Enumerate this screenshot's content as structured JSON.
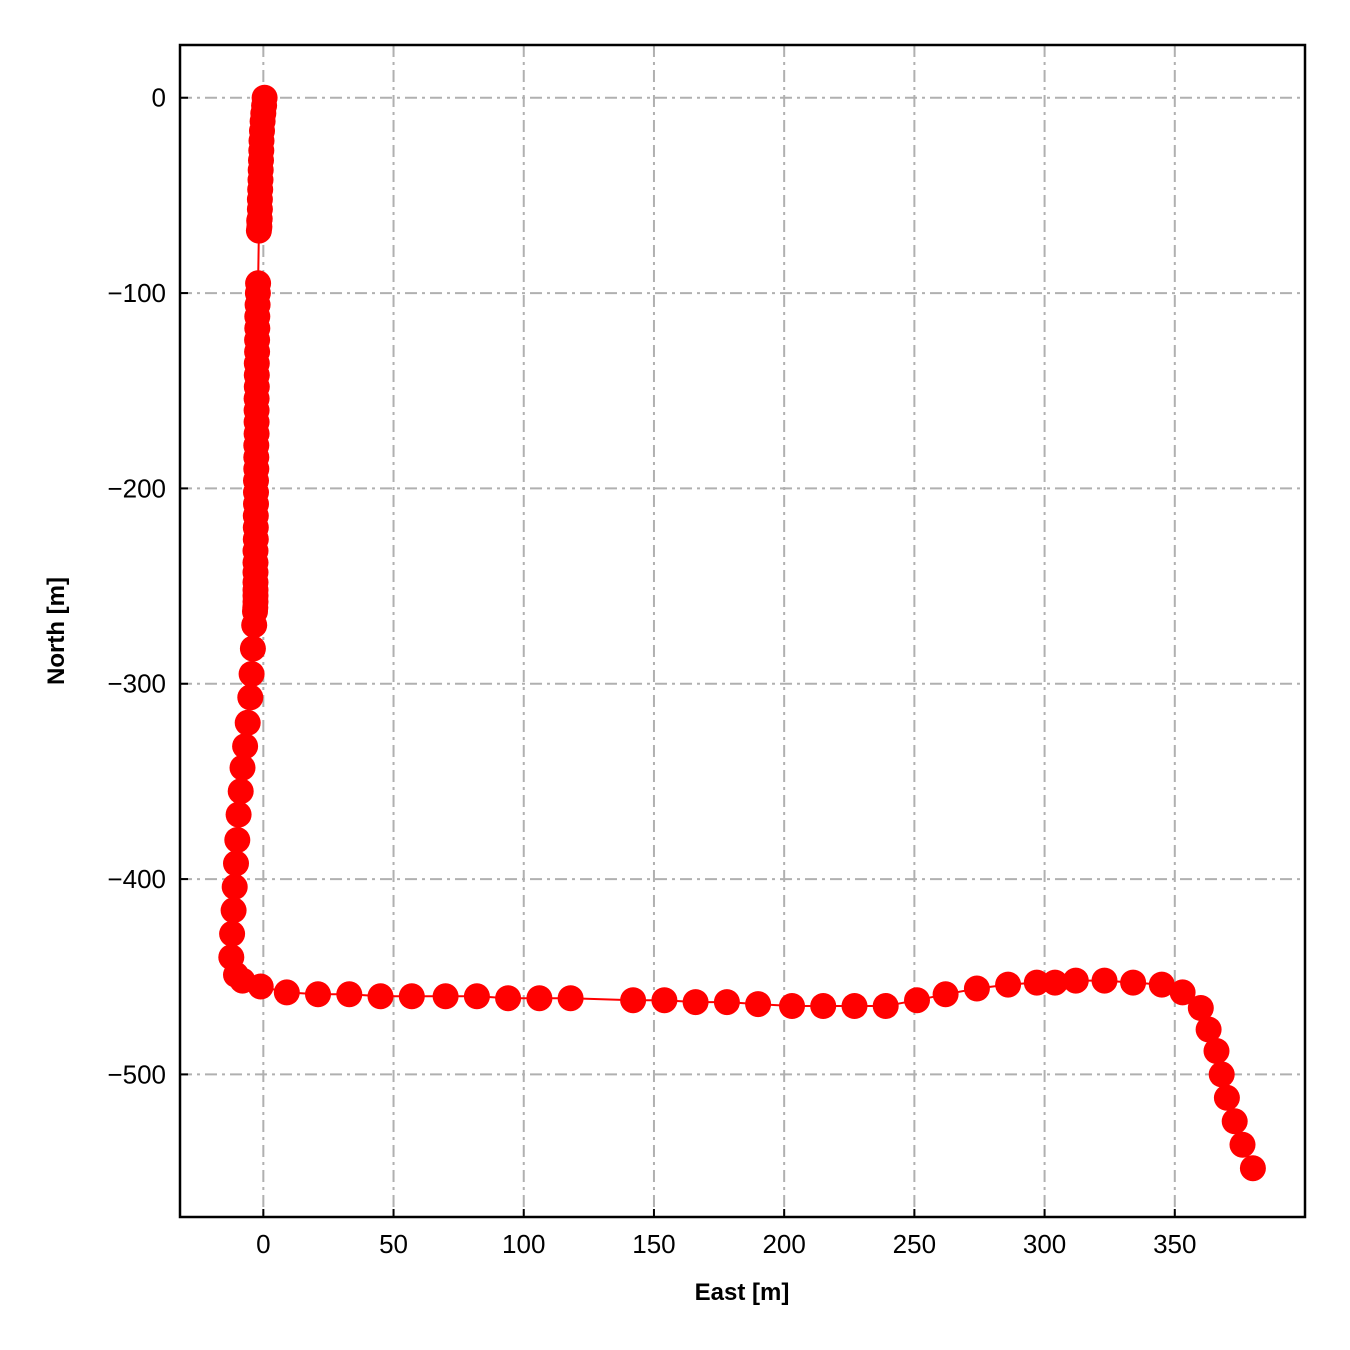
{
  "chart_data": {
    "type": "line",
    "title": "",
    "xlabel": "East [m]",
    "ylabel": "North [m]",
    "xlim": [
      -32,
      400
    ],
    "ylim": [
      -573,
      27
    ],
    "xticks": [
      0,
      50,
      100,
      150,
      200,
      250,
      300,
      350
    ],
    "yticks": [
      0,
      -100,
      -200,
      -300,
      -400,
      -500
    ],
    "grid": true,
    "legend": "none",
    "colors": {
      "series": "#ff0000",
      "grid": "#b0b0b0",
      "frame": "#000000"
    },
    "series": [
      {
        "marker": "circle",
        "x": [
          0.5,
          0.3,
          0,
          -0.3,
          -0.5,
          -0.7,
          -0.8,
          -0.9,
          -1,
          -1.1,
          -1.2,
          -1.3,
          -1.3,
          -1.4,
          -1.5,
          -1.6,
          -1.7,
          -2,
          -2.1,
          -2.2,
          -2.3,
          -2.3,
          -2.4,
          -2.4,
          -2.5,
          -2.5,
          -2.5,
          -2.6,
          -2.6,
          -2.6,
          -2.6,
          -2.7,
          -2.7,
          -2.7,
          -2.8,
          -2.8,
          -2.8,
          -2.9,
          -2.9,
          -2.9,
          -3,
          -3,
          -3,
          -3,
          -3,
          -3,
          -3,
          -3.1,
          -3.2,
          -3.5,
          -4,
          -4.5,
          -5,
          -6,
          -7,
          -8,
          -8.7,
          -9.5,
          -10,
          -10.5,
          -11,
          -11.4,
          -12,
          -12.3,
          -10.5,
          -8,
          -1,
          9,
          21,
          33,
          45,
          57,
          70,
          82,
          94,
          106,
          118,
          142,
          154,
          166,
          178,
          190,
          203,
          215,
          227,
          239,
          251,
          262,
          274,
          286,
          297,
          304,
          312,
          323,
          334,
          345,
          353,
          360,
          363,
          366,
          368,
          370,
          373,
          376,
          380
        ],
        "y": [
          0,
          -4,
          -8,
          -12,
          -17,
          -22,
          -27,
          -32,
          -37,
          -42,
          -47,
          -52,
          -57,
          -62,
          -66,
          -63,
          -68,
          -95,
          -100,
          -106,
          -112,
          -118,
          -124,
          -130,
          -136,
          -142,
          -148,
          -154,
          -160,
          -166,
          -172,
          -178,
          -184,
          -190,
          -196,
          -202,
          -208,
          -214,
          -220,
          -226,
          -232,
          -238,
          -243,
          -248,
          -252,
          -255,
          -258,
          -261,
          -263,
          -270,
          -282,
          -295,
          -307,
          -320,
          -332,
          -343,
          -355,
          -367,
          -380,
          -392,
          -404,
          -416,
          -428,
          -440,
          -449,
          -452,
          -455,
          -458,
          -459,
          -459,
          -460,
          -460,
          -460,
          -460,
          -461,
          -461,
          -461,
          -462,
          -462,
          -463,
          -463,
          -464,
          -465,
          -465,
          -465,
          -465,
          -462,
          -459,
          -456,
          -454,
          -453,
          -453,
          -452,
          -452,
          -453,
          -454,
          -458,
          -466,
          -477,
          -488,
          -500,
          -512,
          -524,
          -536,
          -548
        ]
      }
    ]
  }
}
